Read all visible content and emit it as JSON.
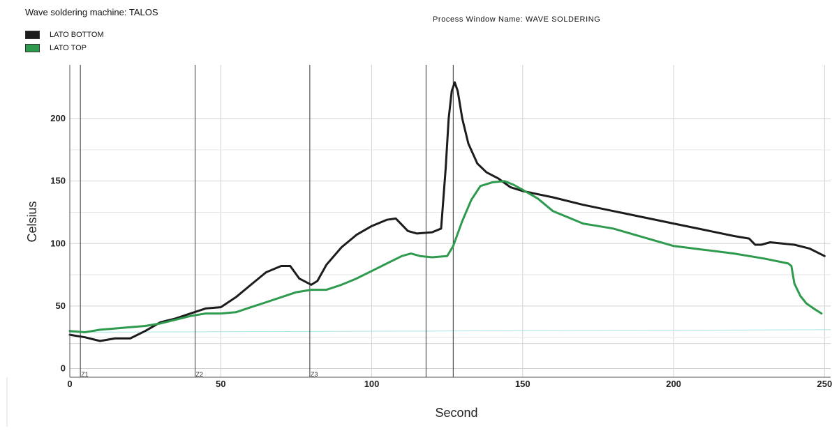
{
  "header": {
    "machine": "Wave soldering machine: TALOS",
    "process_window": "Process Window Name:  WAVE SOLDERING"
  },
  "colors": {
    "bottom": "#1c1c1c",
    "top": "#2e9a4d",
    "reference_line": "#a8e3e3"
  },
  "chart_data": {
    "type": "line",
    "xlabel": "Second",
    "ylabel": "Celsius",
    "xlim": [
      0,
      252
    ],
    "ylim": [
      -7,
      243
    ],
    "x_ticks": [
      0,
      50,
      100,
      150,
      200,
      250
    ],
    "y_ticks": [
      0,
      50,
      100,
      150,
      200
    ],
    "grid": true,
    "legend": "top-left",
    "zone_lines": [
      {
        "x": 3.5,
        "label": "Z1"
      },
      {
        "x": 41.5,
        "label": "Z2"
      },
      {
        "x": 79.5,
        "label": "Z3"
      },
      {
        "x": 118,
        "label": ""
      },
      {
        "x": 127,
        "label": ""
      }
    ],
    "reference_line": {
      "x": [
        0,
        252
      ],
      "y": [
        29,
        31
      ]
    },
    "series": [
      {
        "name": "LATO BOTTOM",
        "color": "#1c1c1c",
        "x": [
          0,
          5,
          10,
          15,
          20,
          25,
          30,
          35,
          40,
          45,
          50,
          55,
          60,
          65,
          70,
          73,
          76,
          80,
          82,
          85,
          90,
          95,
          100,
          105,
          108,
          112,
          115,
          120,
          123,
          124.5,
          125.5,
          126.5,
          127.5,
          128.5,
          130,
          132,
          135,
          138,
          142,
          146,
          150,
          160,
          170,
          180,
          190,
          200,
          210,
          220,
          225,
          227,
          229,
          232,
          240,
          245,
          250
        ],
        "y": [
          27,
          25,
          22,
          24,
          24,
          30,
          37,
          40,
          44,
          48,
          49,
          57,
          67,
          77,
          82,
          82,
          72,
          67,
          70,
          83,
          97,
          107,
          114,
          119,
          120,
          110,
          108,
          109,
          112,
          160,
          200,
          222,
          229,
          222,
          200,
          180,
          164,
          157,
          152,
          145,
          142,
          137,
          131,
          126,
          121,
          116,
          111,
          106,
          104,
          99,
          99,
          101,
          99,
          96,
          90
        ]
      },
      {
        "name": "LATO TOP",
        "color": "#2e9a4d",
        "x": [
          0,
          5,
          10,
          15,
          20,
          25,
          30,
          35,
          40,
          45,
          50,
          55,
          60,
          65,
          70,
          75,
          80,
          85,
          90,
          95,
          100,
          105,
          110,
          113,
          116,
          120,
          125,
          127,
          130,
          133,
          136,
          140,
          144,
          147,
          150,
          155,
          160,
          165,
          170,
          175,
          180,
          190,
          200,
          210,
          220,
          230,
          238,
          239,
          240,
          242,
          244,
          247,
          249
        ],
        "y": [
          30,
          29,
          31,
          32,
          33,
          34,
          36,
          39,
          42,
          44,
          44,
          45,
          49,
          53,
          57,
          61,
          63,
          63,
          67,
          72,
          78,
          84,
          90,
          92,
          90,
          89,
          90,
          98,
          118,
          135,
          146,
          149,
          150,
          147,
          143,
          136,
          126,
          121,
          116,
          114,
          112,
          105,
          98,
          95,
          92,
          88,
          84,
          82,
          68,
          58,
          52,
          47,
          44
        ]
      }
    ]
  }
}
